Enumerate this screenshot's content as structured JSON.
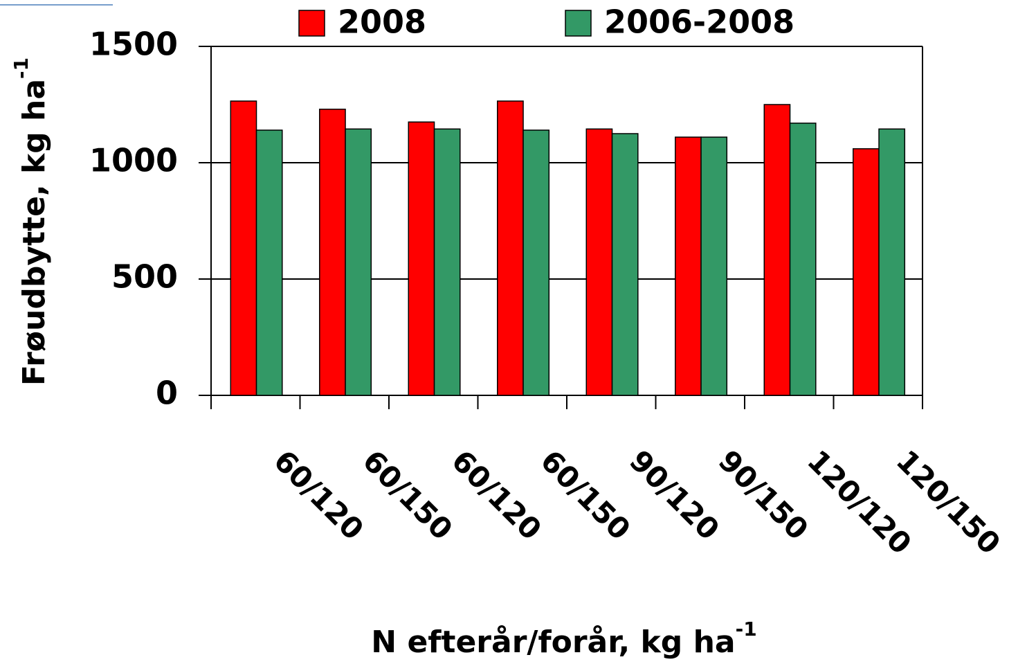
{
  "chart_data": {
    "type": "bar",
    "ylabel": {
      "text": "Frøudbytte, kg ha",
      "sup": "-1"
    },
    "xlabel": {
      "text": "N efterår/forår, kg ha",
      "sup": "-1"
    },
    "categories": [
      "60/120",
      "60/150",
      "60/120",
      "60/150",
      "90/120",
      "90/150",
      "120/120",
      "120/150"
    ],
    "series": [
      {
        "name": "2008",
        "color": "#ff0000",
        "values": [
          1265,
          1230,
          1175,
          1265,
          1145,
          1110,
          1250,
          1060
        ]
      },
      {
        "name": "2006-2008",
        "color": "#339966",
        "values": [
          1140,
          1145,
          1145,
          1140,
          1125,
          1110,
          1170,
          1145
        ]
      }
    ],
    "ylim": [
      0,
      1500
    ],
    "yticks": [
      0,
      500,
      1000,
      1500
    ],
    "grid": true
  }
}
